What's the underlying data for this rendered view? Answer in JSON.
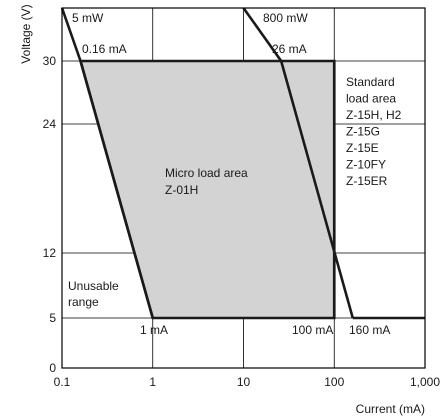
{
  "chart_data": {
    "type": "area",
    "xlabel": "Current (mA)",
    "ylabel": "Voltage (V)",
    "x_scale": "log",
    "xlim": [
      0.1,
      1000
    ],
    "x_ticks": [
      {
        "value": 0.1,
        "label": "0.1"
      },
      {
        "value": 1,
        "label": "1"
      },
      {
        "value": 10,
        "label": "10"
      },
      {
        "value": 100,
        "label": "100"
      },
      {
        "value": 1000,
        "label": "1,000"
      }
    ],
    "y_ticks": [
      {
        "value": 0,
        "label": "0"
      },
      {
        "value": 5,
        "label": "5"
      },
      {
        "value": 12,
        "label": "12"
      },
      {
        "value": 24,
        "label": "24"
      },
      {
        "value": 30,
        "label": "30"
      }
    ],
    "micro_load_area": {
      "name": "Micro load area Z-01H",
      "polygon": [
        [
          0.16,
          30
        ],
        [
          100,
          30
        ],
        [
          100,
          5
        ],
        [
          1,
          5
        ]
      ],
      "color": "#d3d3d3"
    },
    "lines": [
      {
        "name": "5 mW",
        "points": [
          [
            0.1,
            35
          ],
          [
            0.16,
            30
          ],
          [
            1,
            5
          ]
        ]
      },
      {
        "name": "800 mW",
        "points": [
          [
            10,
            35
          ],
          [
            26,
            30
          ],
          [
            160,
            5
          ]
        ]
      },
      {
        "name": "standard-load-boundary",
        "points": [
          [
            100,
            30
          ],
          [
            100,
            5
          ]
        ]
      },
      {
        "name": "min-voltage-line",
        "points": [
          [
            160,
            5
          ],
          [
            1000,
            5
          ]
        ]
      }
    ],
    "annotations": {
      "p1": "5 mW",
      "p800": "800 mW",
      "c016": "0.16 mA",
      "c26": "26 mA",
      "c1": "1 mA",
      "c100": "100 mA",
      "c160": "160 mA",
      "micro": [
        "Micro load area",
        "Z-01H"
      ],
      "standard": [
        "Standard",
        "load area",
        "Z-15H, H2",
        "Z-15G",
        "Z-15E",
        "Z-10FY",
        "Z-15ER"
      ],
      "unusable": [
        "Unusable",
        "range"
      ]
    },
    "grid": true
  }
}
